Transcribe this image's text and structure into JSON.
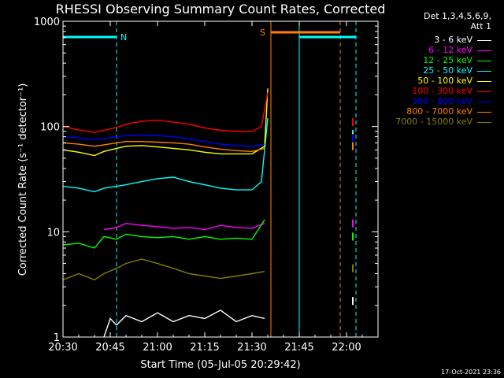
{
  "chart_data": {
    "type": "line",
    "title": "RHESSI Observing Summary Count Rates, Corrected",
    "xlabel": "Start Time (05-Jul-05 20:29:42)",
    "ylabel": "Corrected Count Rate (s⁻¹ detector⁻¹)",
    "yscale": "log",
    "ylim": [
      1,
      1000
    ],
    "xlim_minutes": [
      0,
      100
    ],
    "x_tick_labels": [
      "20:30",
      "20:45",
      "21:00",
      "21:15",
      "21:30",
      "21:45",
      "22:00"
    ],
    "x_tick_minutes": [
      0,
      15,
      30,
      45,
      60,
      75,
      90
    ],
    "y_tick_labels": [
      "1",
      "10",
      "100",
      "1000"
    ],
    "y_tick_values": [
      1,
      10,
      100,
      1000
    ],
    "legend_header": [
      "Det 1,3,4,5,6,9,",
      "Att 1"
    ],
    "corner_text": "17-Oct-2021 23:36",
    "flags": [
      {
        "label": "N",
        "color": "#00ffff",
        "start_min": 0,
        "end_min": 17
      },
      {
        "label": "S",
        "color": "#ff7f00",
        "start_min": 66,
        "end_min": 88
      },
      {
        "label": "",
        "color": "#00ffff",
        "start_min": 75,
        "end_min": 93
      }
    ],
    "vlines": [
      {
        "minute": 17,
        "color": "#00ffff",
        "style": "dashed"
      },
      {
        "minute": 66,
        "color": "#ff7f00",
        "style": "solid"
      },
      {
        "minute": 75,
        "color": "#00ffff",
        "style": "solid"
      },
      {
        "minute": 88,
        "color": "#ff7f00",
        "style": "dashed"
      },
      {
        "minute": 93,
        "color": "#00ffff",
        "style": "dashed"
      }
    ],
    "series": [
      {
        "name": "3 - 6 keV",
        "color": "#ffffff",
        "x": [
          13,
          15,
          17,
          20,
          25,
          30,
          35,
          40,
          45,
          50,
          55,
          60,
          64,
          92
        ],
        "y": [
          1.0,
          1.5,
          1.3,
          1.6,
          1.4,
          1.7,
          1.4,
          1.6,
          1.5,
          1.8,
          1.4,
          1.6,
          1.5,
          2.2
        ]
      },
      {
        "name": "6 - 12 keV",
        "color": "#ff00ff",
        "x": [
          13,
          17,
          20,
          25,
          30,
          35,
          40,
          45,
          50,
          55,
          60,
          64,
          92
        ],
        "y": [
          10.5,
          11.0,
          12.0,
          11.5,
          11.2,
          10.8,
          11.0,
          10.5,
          11.5,
          11.0,
          10.8,
          12.0,
          12.0
        ]
      },
      {
        "name": "12 - 25 keV",
        "color": "#00ff00",
        "x": [
          0,
          5,
          10,
          13,
          17,
          20,
          25,
          30,
          35,
          40,
          45,
          50,
          55,
          60,
          64,
          92
        ],
        "y": [
          7.5,
          7.8,
          7.0,
          9.0,
          8.5,
          9.5,
          9.0,
          8.8,
          9.0,
          8.5,
          9.0,
          8.5,
          8.7,
          8.5,
          13.0,
          9.0
        ]
      },
      {
        "name": "25 - 50 keV",
        "color": "#00ffff",
        "x": [
          0,
          5,
          10,
          13,
          17,
          20,
          25,
          30,
          35,
          40,
          45,
          50,
          55,
          60,
          63,
          65,
          92
        ],
        "y": [
          27,
          26,
          24,
          26,
          27,
          28,
          30,
          32,
          33,
          30,
          28,
          26,
          25,
          25,
          30,
          120,
          85
        ]
      },
      {
        "name": "50 - 100 keV",
        "color": "#ffff00",
        "x": [
          0,
          5,
          10,
          13,
          17,
          20,
          25,
          30,
          35,
          40,
          45,
          50,
          55,
          60,
          64,
          65,
          92
        ],
        "y": [
          60,
          57,
          53,
          58,
          62,
          65,
          66,
          64,
          62,
          60,
          57,
          55,
          55,
          55,
          65,
          230,
          80
        ]
      },
      {
        "name": "100 - 300 keV",
        "color": "#ff0000",
        "x": [
          0,
          5,
          10,
          13,
          17,
          20,
          25,
          30,
          35,
          40,
          45,
          50,
          55,
          60,
          63,
          65,
          92
        ],
        "y": [
          100,
          93,
          88,
          92,
          98,
          105,
          112,
          115,
          110,
          105,
          97,
          92,
          90,
          90,
          100,
          210,
          110
        ]
      },
      {
        "name": "300 - 800 keV",
        "color": "#0000ff",
        "x": [
          0,
          5,
          10,
          13,
          17,
          20,
          25,
          30,
          35,
          40,
          45,
          50,
          55,
          60,
          64,
          92
        ],
        "y": [
          80,
          78,
          75,
          77,
          80,
          82,
          83,
          82,
          80,
          76,
          72,
          68,
          66,
          65,
          68,
          78
        ]
      },
      {
        "name": "800 - 7000 keV",
        "color": "#ff7f00",
        "x": [
          0,
          5,
          10,
          13,
          17,
          20,
          25,
          30,
          35,
          40,
          45,
          50,
          55,
          60,
          64,
          92
        ],
        "y": [
          70,
          68,
          65,
          67,
          70,
          72,
          72,
          71,
          70,
          68,
          64,
          61,
          59,
          58,
          62,
          65
        ]
      },
      {
        "name": "7000 - 15000 keV",
        "color": "#808000",
        "x": [
          0,
          5,
          10,
          13,
          17,
          20,
          25,
          30,
          35,
          40,
          45,
          50,
          55,
          60,
          64,
          92
        ],
        "y": [
          3.5,
          4.0,
          3.5,
          4.0,
          4.5,
          5.0,
          5.5,
          5.0,
          4.5,
          4.0,
          3.8,
          3.6,
          3.8,
          4.0,
          4.2,
          4.5
        ]
      }
    ]
  }
}
